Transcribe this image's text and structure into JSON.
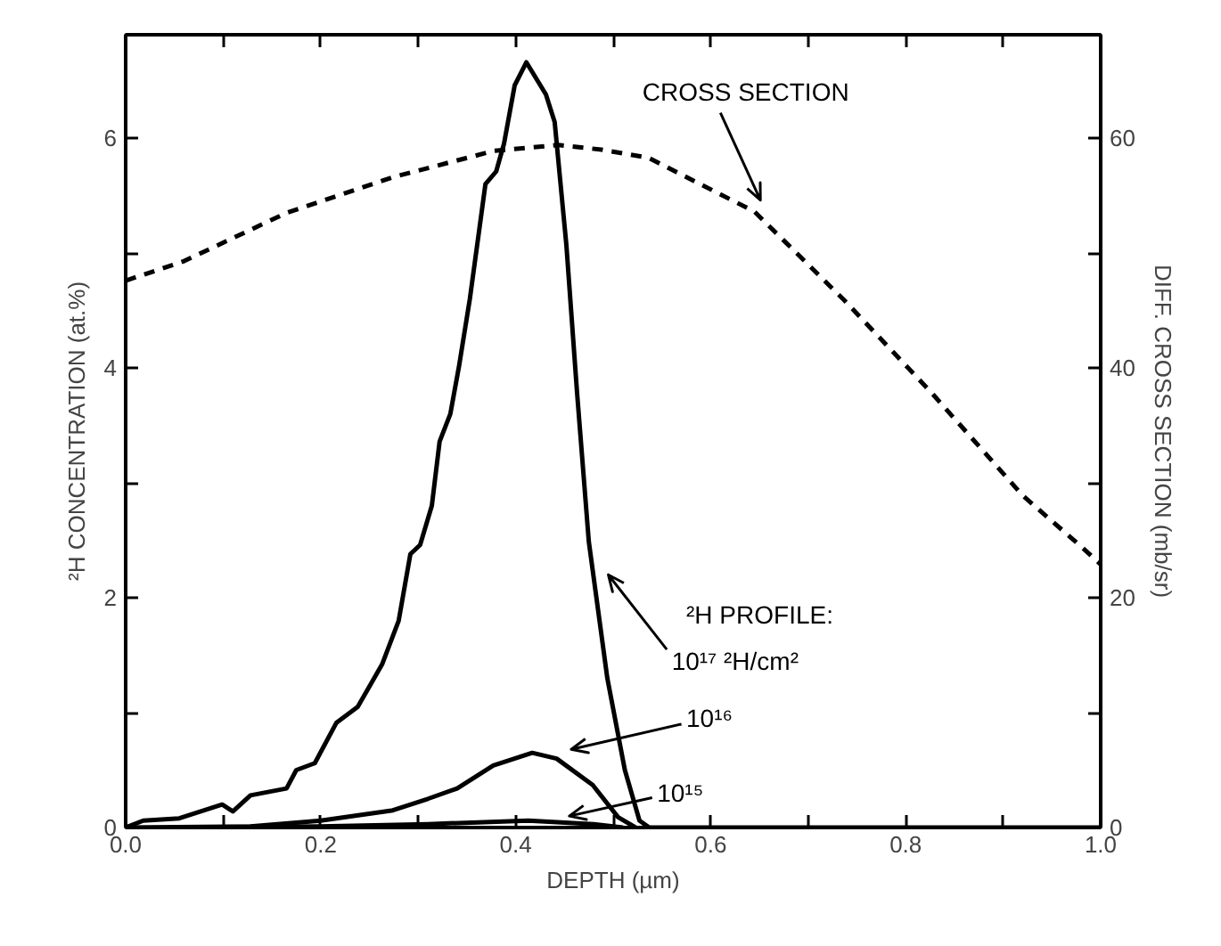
{
  "chart_data": {
    "type": "line",
    "xlabel": "DEPTH (µm)",
    "ylabel": "²H CONCENTRATION (at.%)",
    "y2label": "DIFF. CROSS SECTION (mb/sr)",
    "xlim": [
      0,
      1
    ],
    "ylim": [
      0,
      6.9
    ],
    "y2lim": [
      0,
      69
    ],
    "xticks": [
      {
        "value": 0,
        "label": "0.0"
      },
      {
        "value": 0.1,
        "label": null
      },
      0.2,
      {
        "value": 0.3,
        "label": null
      },
      0.4,
      {
        "value": 0.5,
        "label": null
      },
      0.6,
      {
        "value": 0.7,
        "label": null
      },
      0.8,
      {
        "value": 0.9,
        "label": null
      },
      {
        "value": 1,
        "label": "1.0"
      }
    ],
    "yticks": [
      0,
      {
        "value": 1,
        "label": null
      },
      2,
      {
        "value": 3,
        "label": null
      },
      4,
      {
        "value": 5,
        "label": null
      },
      6
    ],
    "y2ticks": [
      0,
      {
        "value": 10,
        "label": null
      },
      20,
      {
        "value": 30,
        "label": null
      },
      40,
      {
        "value": 50,
        "label": null
      },
      60
    ],
    "grid": false,
    "annotations": [
      "²H PROFILE:"
    ],
    "series": [
      {
        "name": "10¹⁷ ²H/cm²",
        "color": "#000000",
        "line_style": "solid",
        "x": [
          0,
          0.018,
          0.055,
          0.099,
          0.11,
          0.128,
          0.165,
          0.175,
          0.194,
          0.216,
          0.238,
          0.263,
          0.28,
          0.292,
          0.302,
          0.314,
          0.322,
          0.333,
          0.342,
          0.353,
          0.369,
          0.38,
          0.388,
          0.399,
          0.411,
          0.431,
          0.44,
          0.452,
          0.463,
          0.475,
          0.494,
          0.512,
          0.527,
          0.537,
          0.6,
          0.8,
          1.0
        ],
        "values": [
          0,
          0.06,
          0.08,
          0.2,
          0.14,
          0.28,
          0.34,
          0.5,
          0.56,
          0.91,
          1.05,
          1.42,
          1.8,
          2.38,
          2.46,
          2.8,
          3.36,
          3.6,
          4.02,
          4.6,
          5.6,
          5.71,
          5.95,
          6.46,
          6.66,
          6.38,
          6.14,
          5.07,
          3.78,
          2.49,
          1.3,
          0.5,
          0.06,
          0,
          0,
          0,
          0
        ]
      },
      {
        "name": "10¹⁶",
        "color": "#000000",
        "line_style": "solid",
        "x": [
          0,
          0.128,
          0.2,
          0.274,
          0.31,
          0.34,
          0.377,
          0.417,
          0.442,
          0.479,
          0.505,
          0.523
        ],
        "values": [
          0,
          0.01,
          0.06,
          0.15,
          0.25,
          0.34,
          0.54,
          0.65,
          0.6,
          0.37,
          0.09,
          0
        ]
      },
      {
        "name": "10¹⁵",
        "color": "#000000",
        "line_style": "solid",
        "x": [
          0.05,
          0.2,
          0.31,
          0.413,
          0.48,
          0.51
        ],
        "values": [
          0,
          0.01,
          0.03,
          0.06,
          0.03,
          0
        ]
      },
      {
        "name": "CROSS SECTION",
        "color": "#000000",
        "line_style": "dashed",
        "axis": "y2",
        "x": [
          0,
          0.06,
          0.165,
          0.274,
          0.378,
          0.444,
          0.488,
          0.536,
          0.645,
          0.737,
          0.828,
          0.92,
          0.982,
          1.0
        ],
        "values": [
          47.6,
          49.3,
          53.5,
          56.6,
          58.9,
          59.4,
          59.0,
          58.3,
          53.6,
          45.9,
          37.7,
          28.9,
          24.3,
          22.9
        ]
      }
    ]
  }
}
